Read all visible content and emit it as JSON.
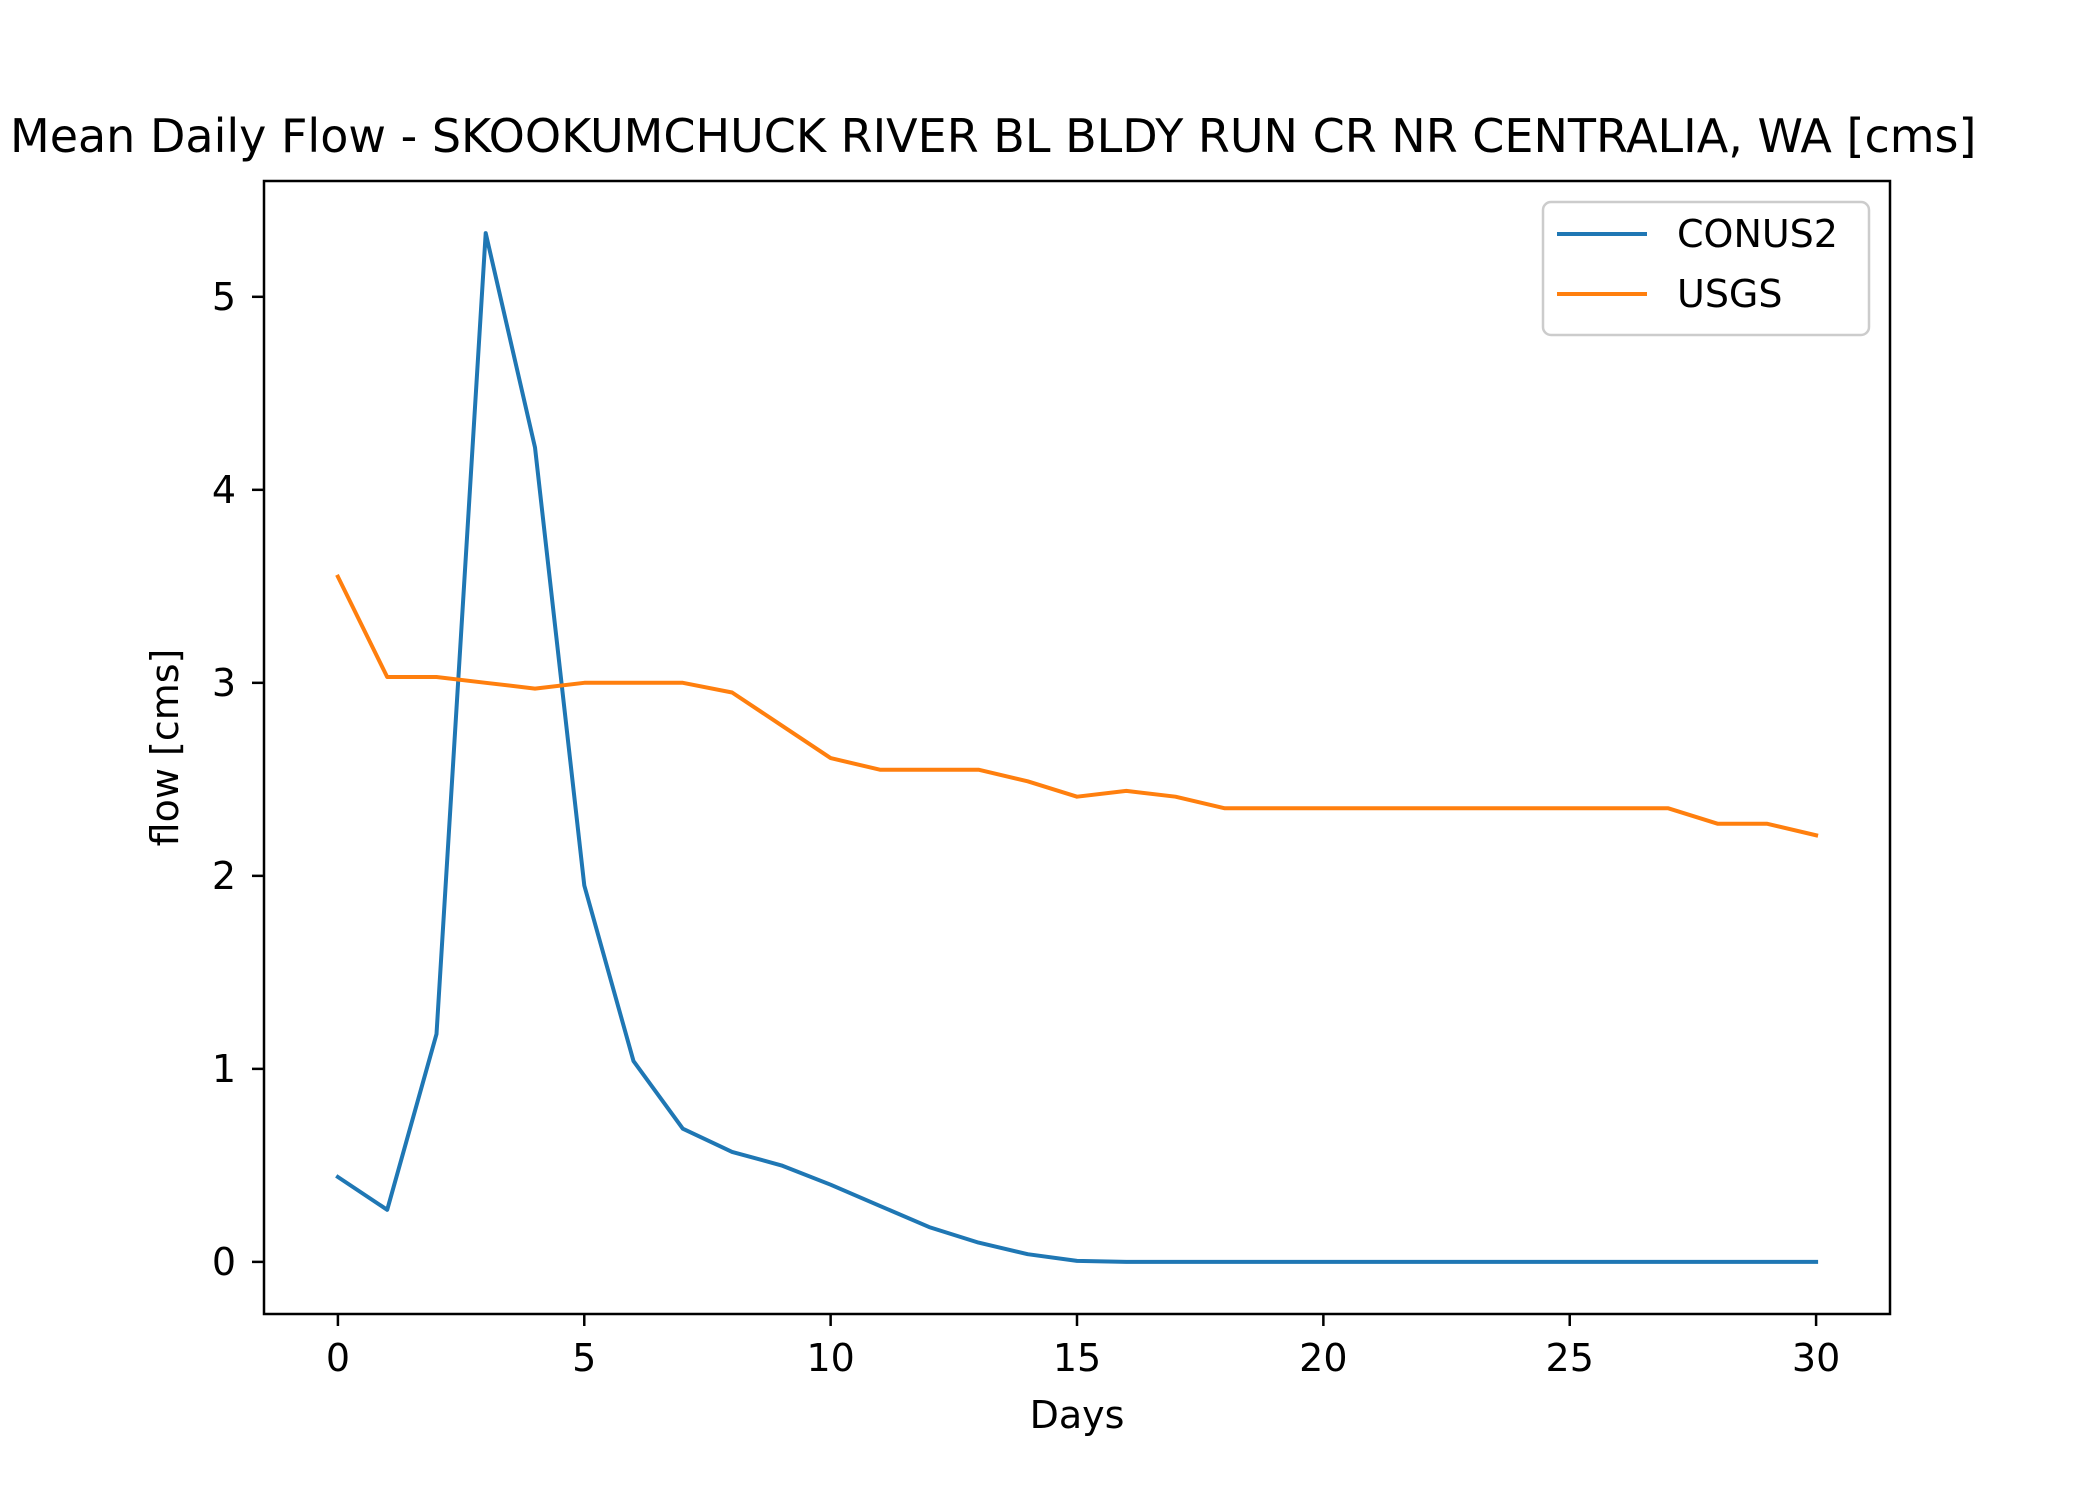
{
  "chart_data": {
    "type": "line",
    "title": "Mean Daily Flow - SKOOKUMCHUCK RIVER BL BLDY RUN CR NR CENTRALIA, WA [cms]",
    "xlabel": "Days",
    "ylabel": "flow [cms]",
    "xlim": [
      -1.5,
      31.5
    ],
    "ylim": [
      -0.27,
      5.6
    ],
    "x_ticks": [
      0,
      5,
      10,
      15,
      20,
      25,
      30
    ],
    "y_ticks": [
      0,
      1,
      2,
      3,
      4,
      5
    ],
    "grid": false,
    "legend_position": "top-right",
    "x": [
      0,
      1,
      2,
      3,
      4,
      5,
      6,
      7,
      8,
      9,
      10,
      11,
      12,
      13,
      14,
      15,
      16,
      17,
      18,
      19,
      20,
      21,
      22,
      23,
      24,
      25,
      26,
      27,
      28,
      29,
      30
    ],
    "series": [
      {
        "name": "CONUS2",
        "color": "#1f77b4",
        "values": [
          0.44,
          0.27,
          1.18,
          5.33,
          4.22,
          1.95,
          1.04,
          0.69,
          0.57,
          0.5,
          0.4,
          0.29,
          0.18,
          0.1,
          0.04,
          0.005,
          0,
          0,
          0,
          0,
          0,
          0,
          0,
          0,
          0,
          0,
          0,
          0,
          0,
          0,
          0
        ]
      },
      {
        "name": "USGS",
        "color": "#ff7f0e",
        "values": [
          3.55,
          3.03,
          3.03,
          3.0,
          2.97,
          3.0,
          3.0,
          3.0,
          2.95,
          2.78,
          2.61,
          2.55,
          2.55,
          2.55,
          2.49,
          2.41,
          2.44,
          2.41,
          2.35,
          2.35,
          2.35,
          2.35,
          2.35,
          2.35,
          2.35,
          2.35,
          2.35,
          2.35,
          2.27,
          2.27,
          2.21
        ]
      }
    ]
  }
}
